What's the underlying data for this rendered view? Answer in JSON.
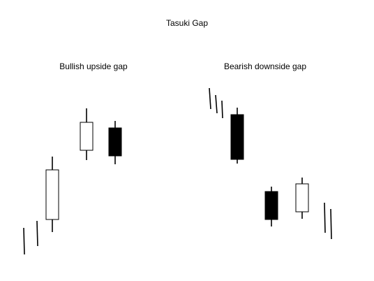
{
  "title": "Tasuki Gap",
  "panels": [
    {
      "label": "Bullish upside gap",
      "items": [
        {
          "kind": "line"
        },
        {
          "kind": "line"
        },
        {
          "kind": "candle",
          "color": "white"
        },
        {
          "kind": "candle",
          "color": "white"
        },
        {
          "kind": "candle",
          "color": "black"
        }
      ]
    },
    {
      "label": "Bearish downside gap",
      "items": [
        {
          "kind": "line"
        },
        {
          "kind": "line"
        },
        {
          "kind": "line"
        },
        {
          "kind": "candle",
          "color": "black"
        },
        {
          "kind": "candle",
          "color": "black"
        },
        {
          "kind": "candle",
          "color": "white"
        },
        {
          "kind": "line"
        },
        {
          "kind": "line"
        }
      ]
    }
  ],
  "colors": {
    "stroke": "#000000",
    "white_fill": "#ffffff",
    "black_fill": "#000000"
  }
}
